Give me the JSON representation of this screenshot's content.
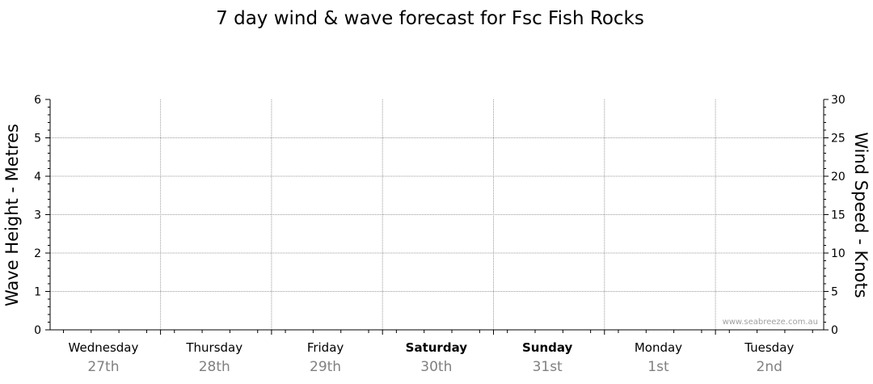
{
  "chart_data": {
    "type": "line",
    "title": "7 day wind & wave forecast for Fsc Fish Rocks",
    "y_left": {
      "label": "Wave Height - Metres",
      "ylim": [
        0,
        6
      ],
      "ticks": [
        "0",
        "1",
        "2",
        "3",
        "4",
        "5",
        "6"
      ]
    },
    "y_right": {
      "label": "Wind Speed - Knots",
      "ylim": [
        0,
        30
      ],
      "ticks": [
        "0",
        "5",
        "10",
        "15",
        "20",
        "25",
        "30"
      ]
    },
    "days": [
      {
        "name": "Wednesday",
        "date": "27th",
        "bold": false
      },
      {
        "name": "Thursday",
        "date": "28th",
        "bold": false
      },
      {
        "name": "Friday",
        "date": "29th",
        "bold": false
      },
      {
        "name": "Saturday",
        "date": "30th",
        "bold": true
      },
      {
        "name": "Sunday",
        "date": "31st",
        "bold": true
      },
      {
        "name": "Monday",
        "date": "1st",
        "bold": false
      },
      {
        "name": "Tuesday",
        "date": "2nd",
        "bold": false
      }
    ],
    "series": [],
    "grid": true,
    "watermark": "www.seabreeze.com.au"
  }
}
